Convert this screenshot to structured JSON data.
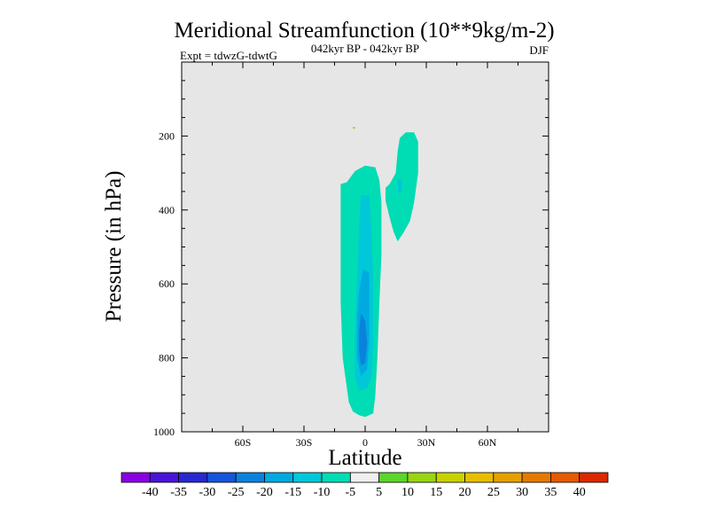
{
  "chart_data": {
    "type": "contour",
    "title": "Meridional Streamfunction (10**9kg/m-2)",
    "subtitle_left": "Expt = tdwzG-tdwtG",
    "subtitle_center": "042kyr BP - 042kyr BP",
    "subtitle_right": "DJF",
    "xlabel": "Latitude",
    "ylabel": "Pressure (in hPa)",
    "xlim": [
      -90,
      90
    ],
    "ylim": [
      1000,
      0
    ],
    "x_ticks": [
      {
        "value": -60,
        "label": "60S"
      },
      {
        "value": -30,
        "label": "30S"
      },
      {
        "value": 0,
        "label": "0"
      },
      {
        "value": 30,
        "label": "30N"
      },
      {
        "value": 60,
        "label": "60N"
      }
    ],
    "y_ticks": [
      {
        "value": 200,
        "label": "200"
      },
      {
        "value": 400,
        "label": "400"
      },
      {
        "value": 600,
        "label": "600"
      },
      {
        "value": 800,
        "label": "800"
      },
      {
        "value": 1000,
        "label": "1000"
      }
    ],
    "plot_background": "#e6e6e6",
    "colorbar": {
      "labels": [
        "-40",
        "-35",
        "-30",
        "-25",
        "-20",
        "-15",
        "-10",
        "-5",
        "5",
        "10",
        "15",
        "20",
        "25",
        "30",
        "35",
        "40"
      ],
      "colors": [
        "#8a00e0",
        "#4a14d8",
        "#2828d2",
        "#1455dc",
        "#0a82dc",
        "#00aade",
        "#00c8d8",
        "#00dcb4",
        "#f0f0f0",
        "#5cd62a",
        "#98d612",
        "#c8d200",
        "#e6be00",
        "#e6a000",
        "#e67a00",
        "#e65a00",
        "#dc2800"
      ]
    },
    "regions": [
      {
        "name": "cell-main-level-10",
        "level": -10,
        "points": [
          [
            -12,
            330
          ],
          [
            -9,
            325
          ],
          [
            -5,
            295
          ],
          [
            0,
            280
          ],
          [
            5,
            285
          ],
          [
            7,
            320
          ],
          [
            8,
            380
          ],
          [
            8,
            520
          ],
          [
            7,
            650
          ],
          [
            6,
            800
          ],
          [
            5,
            900
          ],
          [
            4,
            950
          ],
          [
            0,
            960
          ],
          [
            -3,
            955
          ],
          [
            -6,
            945
          ],
          [
            -8,
            920
          ],
          [
            -9,
            880
          ],
          [
            -11,
            800
          ],
          [
            -12,
            650
          ],
          [
            -12,
            500
          ],
          [
            -12,
            400
          ]
        ]
      },
      {
        "name": "cell-main-level-15",
        "level": -15,
        "points": [
          [
            -2,
            360
          ],
          [
            2,
            360
          ],
          [
            3,
            450
          ],
          [
            4,
            600
          ],
          [
            4,
            750
          ],
          [
            3,
            850
          ],
          [
            1,
            880
          ],
          [
            -3,
            890
          ],
          [
            -5,
            850
          ],
          [
            -5,
            750
          ],
          [
            -4,
            600
          ],
          [
            -3,
            450
          ]
        ]
      },
      {
        "name": "cell-main-level-20",
        "level": -20,
        "points": [
          [
            -1,
            560
          ],
          [
            2,
            570
          ],
          [
            2,
            650
          ],
          [
            2,
            750
          ],
          [
            1,
            830
          ],
          [
            -2,
            850
          ],
          [
            -4,
            800
          ],
          [
            -4,
            700
          ],
          [
            -3,
            620
          ]
        ]
      },
      {
        "name": "cell-main-level-25",
        "level": -25,
        "points": [
          [
            -2,
            680
          ],
          [
            0,
            700
          ],
          [
            1,
            760
          ],
          [
            0,
            815
          ],
          [
            -2,
            820
          ],
          [
            -3,
            780
          ],
          [
            -3,
            730
          ]
        ]
      },
      {
        "name": "cell-north-level-10",
        "level": -10,
        "points": [
          [
            10,
            340
          ],
          [
            12,
            330
          ],
          [
            15,
            300
          ],
          [
            16,
            240
          ],
          [
            17,
            205
          ],
          [
            20,
            190
          ],
          [
            24,
            190
          ],
          [
            26,
            215
          ],
          [
            26,
            300
          ],
          [
            24,
            380
          ],
          [
            22,
            430
          ],
          [
            19,
            460
          ],
          [
            16,
            485
          ],
          [
            14,
            460
          ],
          [
            12,
            420
          ],
          [
            10,
            375
          ]
        ]
      },
      {
        "name": "cell-north-level-15",
        "level": -15,
        "points": [
          [
            16,
            320
          ],
          [
            18,
            315
          ],
          [
            18,
            350
          ],
          [
            16,
            355
          ]
        ]
      },
      {
        "name": "speck-level-10",
        "level": 10,
        "points": [
          [
            -6,
            175
          ],
          [
            -5,
            176
          ],
          [
            -5,
            180
          ],
          [
            -6,
            180
          ]
        ]
      }
    ]
  }
}
